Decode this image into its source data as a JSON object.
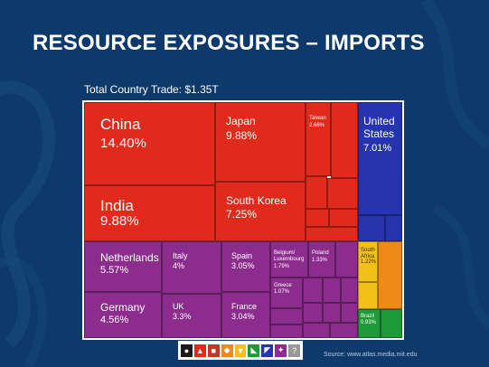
{
  "slide": {
    "title": "RESOURCE EXPOSURES – IMPORTS",
    "subtitle": "Total Country Trade: $1.35T",
    "source": "Source: www.atlas.media.mit.edu"
  },
  "colors": {
    "background": "#0d3a6b",
    "asia": "#e02a1c",
    "north_america": "#2734b0",
    "europe": "#8c2c8c",
    "africa": "#f2c018",
    "africa_alt": "#ef8a17",
    "south_america": "#1f9a39"
  },
  "treemap": {
    "china": {
      "name": "China",
      "value": "14.40%"
    },
    "japan": {
      "name": "Japan",
      "value": "9.88%"
    },
    "taiwan": {
      "name": "Taiwan",
      "value": "2.66%"
    },
    "united_states": {
      "name": "United States",
      "value": "7.01%"
    },
    "india": {
      "name": "India",
      "value": "9.88%"
    },
    "south_korea": {
      "name": "South Korea",
      "value": "7.25%"
    },
    "netherlands": {
      "name": "Netherlands",
      "value": "5.57%"
    },
    "italy": {
      "name": "Italy",
      "value": "4%"
    },
    "spain": {
      "name": "Spain",
      "value": "3.05%"
    },
    "belgium": {
      "name": "Belgium/\nLuxembourg",
      "value": "1.79%"
    },
    "poland": {
      "name": "Poland",
      "value": "1.33%"
    },
    "greece": {
      "name": "Greece",
      "value": "1.07%"
    },
    "south_africa": {
      "name": "South\nAfrica",
      "value": "1.22%"
    },
    "germany": {
      "name": "Germany",
      "value": "4.56%"
    },
    "uk": {
      "name": "UK",
      "value": "3.3%"
    },
    "france": {
      "name": "France",
      "value": "3.04%"
    },
    "brazil": {
      "name": "Brazil",
      "value": "0.93%"
    }
  },
  "toolbar": {
    "buttons": [
      {
        "icon": "world-icon",
        "color": "#1a1a1a"
      },
      {
        "icon": "asia-icon",
        "color": "#e02a1c"
      },
      {
        "icon": "europe-icon",
        "color": "#c0392b"
      },
      {
        "icon": "africa-icon",
        "color": "#ef8a17"
      },
      {
        "icon": "americas-icon",
        "color": "#f2c018"
      },
      {
        "icon": "south-america-icon",
        "color": "#1f9a39"
      },
      {
        "icon": "north-america-icon",
        "color": "#2734b0"
      },
      {
        "icon": "oceania-icon",
        "color": "#8c2c8c"
      },
      {
        "icon": "unknown-icon",
        "color": "#999999"
      }
    ],
    "unknown_label": "?"
  }
}
